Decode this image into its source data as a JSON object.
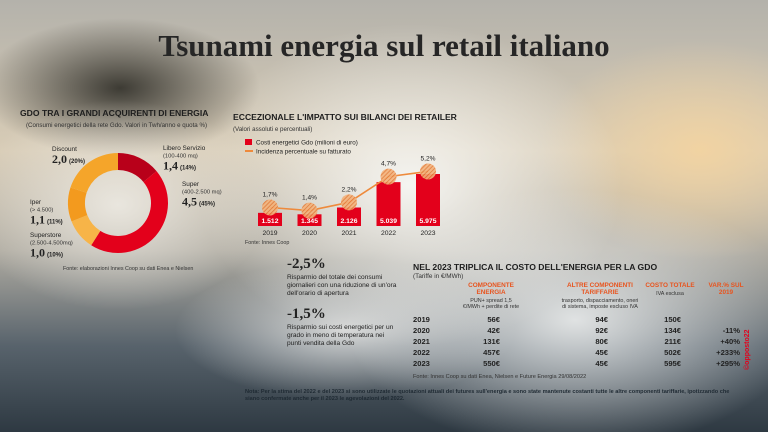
{
  "title": "Tsunami energia sul retail italiano",
  "chart_data": [
    {
      "type": "donut",
      "title": "GDO TRA I GRANDI ACQUIRENTI DI ENERGIA",
      "subtitle": "(Consumi energetici della rete Gdo. Valori in Twh/anno e quota %)",
      "categories": [
        "Libero Servizio",
        "Super",
        "Superstore",
        "Iper",
        "Discount"
      ],
      "sublabels": [
        "(100-400 mq)",
        "(400-2.500 mq)",
        "(2.500-4.500mq)",
        "(> 4.500)",
        null
      ],
      "values": [
        1.4,
        4.5,
        1.0,
        1.1,
        2.0
      ],
      "value_labels": [
        "1,4",
        "4,5",
        "1,0",
        "1,1",
        "2,0"
      ],
      "shares": [
        14,
        45,
        10,
        11,
        20
      ],
      "share_labels": [
        "(14%)",
        "(45%)",
        "(10%)",
        "(11%)",
        "(20%)"
      ],
      "colors": [
        "#b8001a",
        "#e3001b",
        "#f7b448",
        "#f39a1e",
        "#f5a52a"
      ],
      "source": "Fonte: elaborazioni Innes Coop su dati Enea e Nielsen"
    },
    {
      "type": "bar-line",
      "title": "ECCEZIONALE L'IMPATTO SUI BILANCI DEI RETAILER",
      "subtitle": "(Valori assoluti e percentuali)",
      "categories": [
        "2019",
        "2020",
        "2021",
        "2022",
        "2023"
      ],
      "series": [
        {
          "name": "Costi energetici Gdo (milioni di euro)",
          "color": "#e3001b",
          "values": [
            1512,
            1345,
            2126,
            5039,
            5975
          ],
          "value_labels": [
            "1.512",
            "1.345",
            "2.126",
            "5.039",
            "5.975"
          ]
        },
        {
          "name": "Incidenza percentuale su fatturato",
          "color": "#ee8a3c",
          "type": "line",
          "values": [
            1.7,
            1.4,
            2.2,
            4.7,
            5.2
          ],
          "value_labels": [
            "1,7%",
            "1,4%",
            "2,2%",
            "4,7%",
            "5,2%"
          ]
        }
      ],
      "source": "Fonte: Innes Coop"
    }
  ],
  "callouts": [
    {
      "value": "-2,5%",
      "text": "Risparmio del totale dei consumi giornalieri con una riduzione di un'ora dell'orario di apertura"
    },
    {
      "value": "-1,5%",
      "text": "Risparmio sui costi energetici per un grado in meno di temperatura nei punti vendita della Gdo"
    }
  ],
  "table": {
    "title": "NEL 2023 TRIPLICA IL COSTO DELL'ENERGIA PER LA GDO",
    "subtitle": "(Tariffe in €/MWh)",
    "columns": [
      {
        "label": "COMPONENTE ENERGIA",
        "note": "PUN+ spread 1,5 €/MWh + perdite di rete"
      },
      {
        "label": "ALTRE COMPONENTI TARIFFARIE",
        "note": "trasporto, dispacciamento, oneri di sistema, imposte escluso IVA"
      },
      {
        "label": "COSTO TOTALE",
        "note": "IVA esclusa"
      },
      {
        "label": "VAR.% SUL 2019",
        "note": null
      }
    ],
    "rows": [
      [
        "2019",
        "56€",
        "94€",
        "150€",
        null
      ],
      [
        "2020",
        "42€",
        "92€",
        "134€",
        "-11%"
      ],
      [
        "2021",
        "131€",
        "80€",
        "211€",
        "+40%"
      ],
      [
        "2022",
        "457€",
        "45€",
        "502€",
        "+233%"
      ],
      [
        "2023",
        "550€",
        "45€",
        "595€",
        "+295%"
      ]
    ],
    "source": "Fonte: Innes Coop su dati Enea, Nielsen e Future Energia 29/08/2022"
  },
  "note": "Nota: Per la stima del 2022 e del 2023 si sono utilizzate le quotazioni attuali dei futures sull'energia e sono state mantenute costanti tutte le altre componenti tariffarie, ipotizzando che siano confermate anche per il 2023 le agevolazioni del 2022.",
  "credit": "©opposto22"
}
